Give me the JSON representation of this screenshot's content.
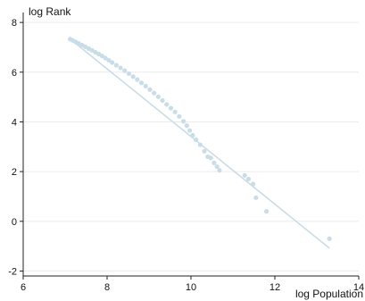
{
  "chart_data": {
    "type": "scatter",
    "title": "",
    "xlabel": "log Population",
    "ylabel": "log Rank",
    "xlim": [
      6,
      14
    ],
    "ylim": [
      -2.2,
      8.4
    ],
    "xticks": [
      "6",
      "8",
      "10",
      "12",
      "14"
    ],
    "yticks": [
      "-2",
      "0",
      "2",
      "4",
      "6",
      "8"
    ],
    "xtick_values": [
      6,
      8,
      10,
      12,
      14
    ],
    "ytick_values": [
      -2,
      0,
      2,
      4,
      6,
      8
    ],
    "grid": "horizontal",
    "marker_color": "#c9dde8",
    "fit_line_color": "#c9dde8",
    "points": [
      [
        7.12,
        7.33
      ],
      [
        7.18,
        7.28
      ],
      [
        7.25,
        7.22
      ],
      [
        7.32,
        7.16
      ],
      [
        7.4,
        7.09
      ],
      [
        7.48,
        7.02
      ],
      [
        7.56,
        6.95
      ],
      [
        7.64,
        6.88
      ],
      [
        7.72,
        6.8
      ],
      [
        7.8,
        6.73
      ],
      [
        7.88,
        6.65
      ],
      [
        7.96,
        6.57
      ],
      [
        8.04,
        6.48
      ],
      [
        8.12,
        6.39
      ],
      [
        8.22,
        6.28
      ],
      [
        8.32,
        6.17
      ],
      [
        8.42,
        6.06
      ],
      [
        8.52,
        5.94
      ],
      [
        8.62,
        5.82
      ],
      [
        8.72,
        5.7
      ],
      [
        8.82,
        5.57
      ],
      [
        8.92,
        5.44
      ],
      [
        9.02,
        5.3
      ],
      [
        9.12,
        5.16
      ],
      [
        9.22,
        5.01
      ],
      [
        9.32,
        4.86
      ],
      [
        9.42,
        4.7
      ],
      [
        9.52,
        4.55
      ],
      [
        9.62,
        4.4
      ],
      [
        9.72,
        4.22
      ],
      [
        9.82,
        4.02
      ],
      [
        9.9,
        3.85
      ],
      [
        9.97,
        3.65
      ],
      [
        10.04,
        3.46
      ],
      [
        10.12,
        3.28
      ],
      [
        10.22,
        3.08
      ],
      [
        10.32,
        2.82
      ],
      [
        10.4,
        2.6
      ],
      [
        10.47,
        2.55
      ],
      [
        10.55,
        2.35
      ],
      [
        10.62,
        2.2
      ],
      [
        10.68,
        2.05
      ],
      [
        11.28,
        1.85
      ],
      [
        11.37,
        1.7
      ],
      [
        11.48,
        1.5
      ],
      [
        11.55,
        0.95
      ],
      [
        11.8,
        0.4
      ],
      [
        13.3,
        -0.7
      ]
    ],
    "fit_line": {
      "x": [
        7.12,
        13.3
      ],
      "y": [
        7.33,
        -1.08
      ]
    }
  }
}
